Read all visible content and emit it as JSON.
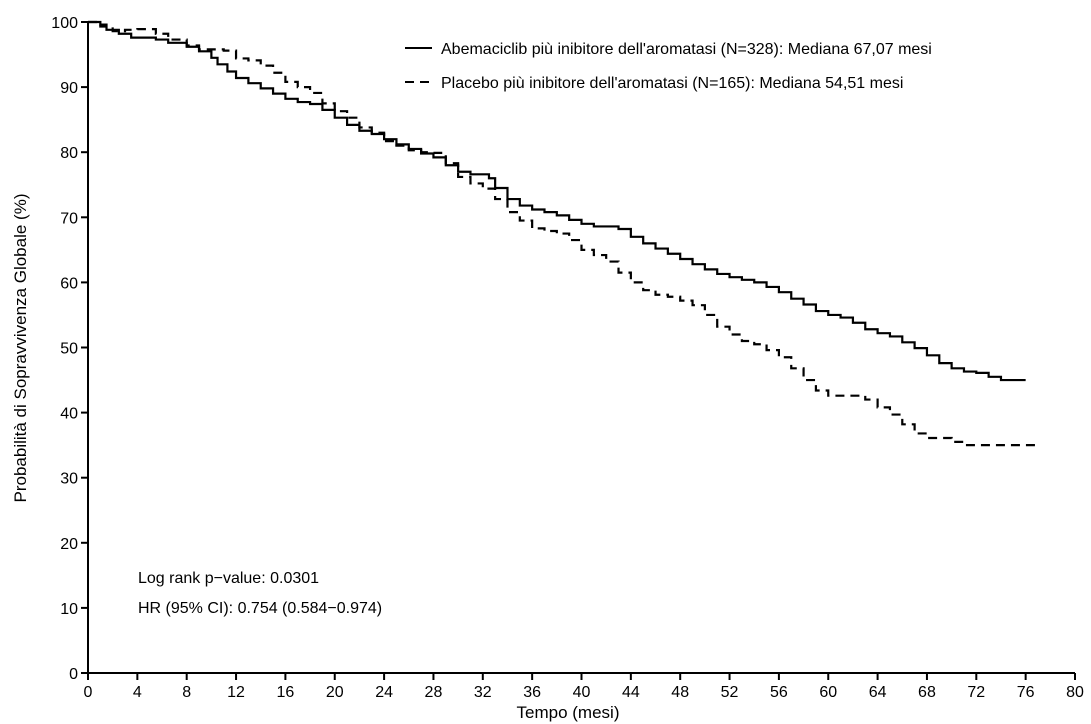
{
  "chart_data": {
    "type": "line",
    "xlabel": "Tempo (mesi)",
    "ylabel": "Probabilità di Sopravvivenza Globale (%)",
    "xlim": [
      0,
      80
    ],
    "ylim": [
      0,
      100
    ],
    "xticks": [
      0,
      4,
      8,
      12,
      16,
      20,
      24,
      28,
      32,
      36,
      40,
      44,
      48,
      52,
      56,
      60,
      64,
      68,
      72,
      76,
      80
    ],
    "yticks": [
      0,
      10,
      20,
      30,
      40,
      50,
      60,
      70,
      80,
      90,
      100
    ],
    "grid": false,
    "legend_position": "top-right",
    "series": [
      {
        "name": "Abemaciclib più inibitore dell'aromatasi (N=328): Mediana 67,07 mesi",
        "line_style": "solid",
        "color": "#000000",
        "points": [
          [
            0,
            100
          ],
          [
            1,
            99.6
          ],
          [
            1.5,
            98.8
          ],
          [
            2.5,
            98.2
          ],
          [
            3.5,
            97.6
          ],
          [
            5.5,
            97.3
          ],
          [
            6.5,
            96.8
          ],
          [
            8,
            96.2
          ],
          [
            9,
            95.5
          ],
          [
            10,
            94.5
          ],
          [
            10.5,
            93.5
          ],
          [
            11.3,
            92.4
          ],
          [
            12,
            91.4
          ],
          [
            13,
            90.6
          ],
          [
            14,
            89.8
          ],
          [
            15,
            89
          ],
          [
            16,
            88.2
          ],
          [
            17,
            87.7
          ],
          [
            18,
            87.4
          ],
          [
            19,
            86.5
          ],
          [
            20,
            85.3
          ],
          [
            21,
            84.2
          ],
          [
            22,
            83.3
          ],
          [
            23,
            82.8
          ],
          [
            24,
            82
          ],
          [
            25,
            81.2
          ],
          [
            26,
            80.5
          ],
          [
            27,
            79.8
          ],
          [
            28,
            79.2
          ],
          [
            29,
            78
          ],
          [
            30,
            77
          ],
          [
            31,
            76.6
          ],
          [
            32.5,
            76
          ],
          [
            33,
            74.5
          ],
          [
            34,
            72.8
          ],
          [
            35,
            71.8
          ],
          [
            36,
            71.2
          ],
          [
            37,
            70.8
          ],
          [
            38,
            70.3
          ],
          [
            39,
            69.6
          ],
          [
            40,
            69
          ],
          [
            41,
            68.6
          ],
          [
            43,
            68.2
          ],
          [
            44,
            67
          ],
          [
            45,
            66
          ],
          [
            46,
            65.2
          ],
          [
            47,
            64.4
          ],
          [
            48,
            63.6
          ],
          [
            49,
            62.8
          ],
          [
            50,
            62
          ],
          [
            51,
            61.3
          ],
          [
            52,
            60.8
          ],
          [
            53,
            60.4
          ],
          [
            54,
            60
          ],
          [
            55,
            59.3
          ],
          [
            56,
            58.5
          ],
          [
            57,
            57.5
          ],
          [
            58,
            56.6
          ],
          [
            59,
            55.6
          ],
          [
            60,
            55
          ],
          [
            61,
            54.6
          ],
          [
            62,
            53.8
          ],
          [
            63,
            52.8
          ],
          [
            64,
            52.2
          ],
          [
            65,
            51.7
          ],
          [
            66,
            50.8
          ],
          [
            67,
            49.9
          ],
          [
            68,
            48.8
          ],
          [
            69,
            47.6
          ],
          [
            70,
            46.8
          ],
          [
            71,
            46.3
          ],
          [
            72,
            46.1
          ],
          [
            73,
            45.5
          ],
          [
            74,
            45
          ],
          [
            76,
            45
          ]
        ]
      },
      {
        "name": "Placebo più inibitore dell'aromatasi (N=165): Mediana 54,51 mesi",
        "line_style": "dashed",
        "color": "#000000",
        "points": [
          [
            0,
            100
          ],
          [
            1,
            99.3
          ],
          [
            2,
            98.6
          ],
          [
            3,
            98.8
          ],
          [
            4,
            98.9
          ],
          [
            5.5,
            98.2
          ],
          [
            6.5,
            97.3
          ],
          [
            8,
            96.4
          ],
          [
            9,
            95.8
          ],
          [
            11,
            95.6
          ],
          [
            12,
            94.4
          ],
          [
            13,
            94.1
          ],
          [
            14,
            93.3
          ],
          [
            15,
            92.2
          ],
          [
            16,
            90.8
          ],
          [
            17,
            90
          ],
          [
            18,
            89.1
          ],
          [
            19,
            87.5
          ],
          [
            20,
            86.3
          ],
          [
            21,
            85.3
          ],
          [
            22,
            83.8
          ],
          [
            23,
            83
          ],
          [
            24,
            81.7
          ],
          [
            25,
            81
          ],
          [
            26,
            80.3
          ],
          [
            27,
            80
          ],
          [
            28,
            79.9
          ],
          [
            29,
            78.3
          ],
          [
            30,
            76.2
          ],
          [
            31,
            75.2
          ],
          [
            32,
            74.4
          ],
          [
            33,
            72.8
          ],
          [
            34,
            70.8
          ],
          [
            35,
            69.5
          ],
          [
            36,
            68.3
          ],
          [
            37,
            67.9
          ],
          [
            38,
            67.5
          ],
          [
            39,
            66.5
          ],
          [
            40,
            65
          ],
          [
            41,
            64.2
          ],
          [
            42,
            63.2
          ],
          [
            43,
            61.5
          ],
          [
            44,
            60
          ],
          [
            45,
            58.8
          ],
          [
            46,
            58.1
          ],
          [
            47,
            57.8
          ],
          [
            48,
            57.2
          ],
          [
            49,
            56.5
          ],
          [
            50,
            55
          ],
          [
            51,
            53.2
          ],
          [
            52,
            52
          ],
          [
            53,
            51
          ],
          [
            54,
            50.5
          ],
          [
            55,
            49.6
          ],
          [
            56,
            48.5
          ],
          [
            57,
            46.8
          ],
          [
            58,
            45
          ],
          [
            59,
            43.4
          ],
          [
            60,
            42.6
          ],
          [
            62,
            42.6
          ],
          [
            63,
            42
          ],
          [
            64,
            40.8
          ],
          [
            65,
            39.7
          ],
          [
            66,
            38.2
          ],
          [
            67,
            36.8
          ],
          [
            68,
            36.1
          ],
          [
            70,
            35.5
          ],
          [
            71,
            35
          ],
          [
            77,
            35
          ]
        ]
      }
    ],
    "annotations": [
      "Log rank p−value: 0.0301",
      "HR (95% CI):  0.754 (0.584−0.974)"
    ]
  }
}
